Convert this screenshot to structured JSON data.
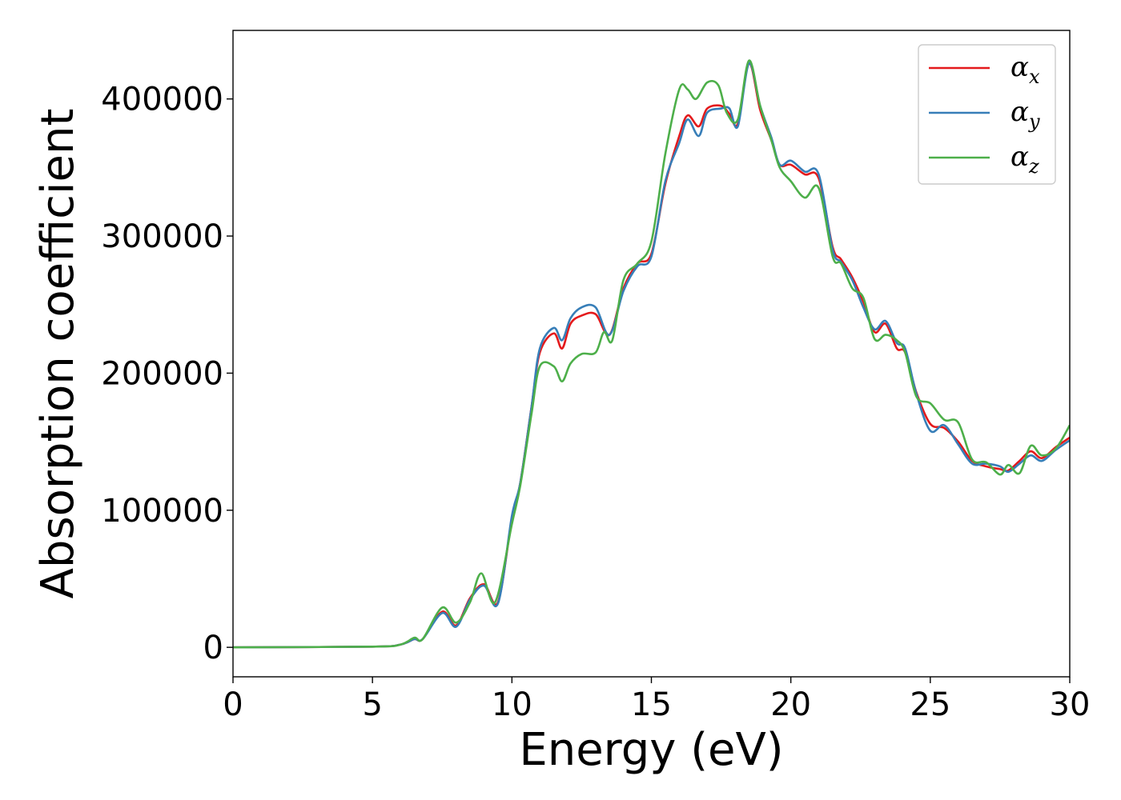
{
  "chart_data": {
    "type": "line",
    "title": "",
    "xlabel": "Energy (eV)",
    "ylabel": "Absorption coefficient",
    "xlim": [
      0,
      30
    ],
    "ylim": [
      -21500,
      450000
    ],
    "xticks": [
      0,
      5,
      10,
      15,
      20,
      25,
      30
    ],
    "xtick_labels": [
      "0",
      "5",
      "10",
      "15",
      "20",
      "25",
      "30"
    ],
    "yticks": [
      0,
      100000,
      200000,
      300000,
      400000
    ],
    "ytick_labels": [
      "0",
      "100000",
      "200000",
      "300000",
      "400000"
    ],
    "grid": false,
    "legend_position": "top-right",
    "series": [
      {
        "name": "α",
        "subscript": "x",
        "color": "#e41a1c",
        "x": [
          0,
          5,
          6,
          6.5,
          6.8,
          7.5,
          8.0,
          8.5,
          9.0,
          9.5,
          10.0,
          10.3,
          10.7,
          11.0,
          11.5,
          11.8,
          12.1,
          12.5,
          13.0,
          13.5,
          14.0,
          14.5,
          15.0,
          15.5,
          16.0,
          16.3,
          16.7,
          17.0,
          17.5,
          17.8,
          18.1,
          18.5,
          18.9,
          19.3,
          19.6,
          20.0,
          20.5,
          21.0,
          21.5,
          21.8,
          22.2,
          22.6,
          23.0,
          23.4,
          23.8,
          24.1,
          24.5,
          25.0,
          25.5,
          26.0,
          26.5,
          27.0,
          27.5,
          27.8,
          28.2,
          28.6,
          29.0,
          29.5,
          30.0
        ],
        "y": [
          0,
          500,
          2000,
          6000,
          6000,
          26000,
          16000,
          36000,
          46000,
          33000,
          94000,
          120000,
          175000,
          215000,
          229000,
          218000,
          236000,
          242000,
          243000,
          228000,
          262000,
          280000,
          287000,
          338000,
          373000,
          388000,
          380000,
          393000,
          395000,
          389000,
          382000,
          426000,
          392000,
          370000,
          352000,
          352000,
          345000,
          342000,
          292000,
          283000,
          270000,
          252000,
          230000,
          236000,
          218000,
          215000,
          186000,
          163000,
          160000,
          150000,
          136000,
          132000,
          130000,
          129000,
          136000,
          143000,
          138000,
          146000,
          153000
        ]
      },
      {
        "name": "α",
        "subscript": "y",
        "color": "#377eb8",
        "x": [
          0,
          5,
          6,
          6.5,
          6.8,
          7.5,
          8.0,
          8.5,
          9.0,
          9.5,
          10.0,
          10.3,
          10.7,
          11.0,
          11.5,
          11.8,
          12.1,
          12.5,
          13.0,
          13.5,
          14.0,
          14.5,
          15.0,
          15.5,
          16.0,
          16.3,
          16.7,
          17.0,
          17.5,
          17.8,
          18.1,
          18.5,
          18.9,
          19.3,
          19.6,
          20.0,
          20.5,
          21.0,
          21.5,
          21.8,
          22.2,
          22.6,
          23.0,
          23.4,
          23.8,
          24.1,
          24.5,
          25.0,
          25.5,
          26.0,
          26.5,
          27.0,
          27.5,
          27.8,
          28.2,
          28.6,
          29.0,
          29.5,
          30.0
        ],
        "y": [
          0,
          500,
          2000,
          6000,
          6000,
          25000,
          15000,
          35000,
          45000,
          32000,
          96000,
          120000,
          175000,
          218000,
          233000,
          224000,
          240000,
          248000,
          248000,
          228000,
          260000,
          278000,
          285000,
          340000,
          368000,
          385000,
          373000,
          390000,
          393000,
          393000,
          380000,
          426000,
          395000,
          372000,
          352000,
          355000,
          347000,
          345000,
          290000,
          281000,
          268000,
          248000,
          232000,
          238000,
          222000,
          218000,
          185000,
          158000,
          162000,
          148000,
          134000,
          134000,
          132000,
          128000,
          134000,
          140000,
          136000,
          144000,
          151000
        ]
      },
      {
        "name": "α",
        "subscript": "z",
        "color": "#4daf4a",
        "x": [
          0,
          5,
          6,
          6.5,
          6.8,
          7.5,
          8.0,
          8.5,
          8.9,
          9.4,
          10.0,
          10.3,
          10.7,
          11.0,
          11.5,
          11.8,
          12.1,
          12.5,
          13.0,
          13.3,
          13.6,
          14.0,
          14.5,
          15.0,
          15.5,
          16.0,
          16.3,
          16.6,
          17.0,
          17.4,
          17.7,
          18.1,
          18.5,
          18.9,
          19.3,
          19.6,
          20.0,
          20.5,
          21.0,
          21.5,
          21.8,
          22.2,
          22.6,
          23.0,
          23.4,
          23.8,
          24.1,
          24.5,
          25.0,
          25.5,
          26.0,
          26.5,
          27.0,
          27.5,
          27.8,
          28.2,
          28.6,
          29.0,
          29.5,
          30.0
        ],
        "y": [
          0,
          500,
          2000,
          7000,
          6000,
          29000,
          18000,
          33000,
          54000,
          33000,
          90000,
          118000,
          170000,
          205000,
          205000,
          194000,
          207000,
          214000,
          215000,
          230000,
          224000,
          268000,
          280000,
          296000,
          360000,
          407000,
          407000,
          400000,
          412000,
          410000,
          390000,
          385000,
          428000,
          395000,
          370000,
          350000,
          340000,
          328000,
          335000,
          285000,
          280000,
          262000,
          255000,
          225000,
          228000,
          224000,
          215000,
          183000,
          178000,
          166000,
          164000,
          137000,
          135000,
          126000,
          133000,
          127000,
          147000,
          140000,
          145000,
          162000
        ]
      }
    ]
  }
}
